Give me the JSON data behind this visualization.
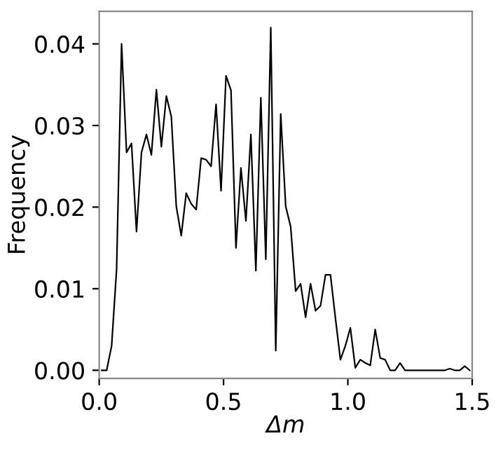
{
  "chart_data": {
    "type": "line",
    "xlabel": "Δm",
    "ylabel": "Frequency",
    "x": [
      0.01,
      0.03,
      0.05,
      0.07,
      0.09,
      0.11,
      0.13,
      0.15,
      0.17,
      0.19,
      0.21,
      0.23,
      0.25,
      0.27,
      0.29,
      0.31,
      0.33,
      0.35,
      0.37,
      0.39,
      0.41,
      0.43,
      0.45,
      0.47,
      0.49,
      0.51,
      0.53,
      0.55,
      0.57,
      0.59,
      0.61,
      0.63,
      0.65,
      0.67,
      0.69,
      0.71,
      0.73,
      0.75,
      0.77,
      0.79,
      0.81,
      0.83,
      0.85,
      0.87,
      0.89,
      0.91,
      0.93,
      0.95,
      0.97,
      0.99,
      1.01,
      1.03,
      1.05,
      1.07,
      1.09,
      1.11,
      1.13,
      1.15,
      1.17,
      1.19,
      1.21,
      1.23,
      1.25,
      1.27,
      1.29,
      1.31,
      1.33,
      1.35,
      1.37,
      1.39,
      1.41,
      1.43,
      1.45,
      1.47,
      1.49
    ],
    "series": [
      {
        "color": "#000000",
        "values": [
          0,
          0,
          0.003,
          0.0124,
          0.04,
          0.0267,
          0.0278,
          0.017,
          0.0267,
          0.0289,
          0.0264,
          0.0344,
          0.0274,
          0.0336,
          0.0311,
          0.0201,
          0.0165,
          0.0217,
          0.0204,
          0.0197,
          0.026,
          0.0258,
          0.025,
          0.0326,
          0.022,
          0.0361,
          0.0343,
          0.015,
          0.0248,
          0.0183,
          0.0289,
          0.0122,
          0.0334,
          0.0136,
          0.042,
          0.0024,
          0.0314,
          0.0201,
          0.0176,
          0.0097,
          0.0106,
          0.0065,
          0.0106,
          0.0073,
          0.0079,
          0.0117,
          0.0117,
          0.0064,
          0.0013,
          0.003,
          0.0052,
          0.0003,
          0.0013,
          0.0009,
          0.0006,
          0.005,
          0.0015,
          0.0013,
          0,
          0,
          0.0009,
          0,
          0,
          0,
          0,
          0,
          0,
          0,
          0,
          0,
          0.0002,
          0,
          0,
          0.0005,
          0
        ]
      }
    ],
    "xlim": [
      0,
      1.5
    ],
    "ylim": [
      -0.001,
      0.044
    ],
    "xticks": [
      {
        "value": 0,
        "label": "0.0"
      },
      {
        "value": 0.5,
        "label": "0.5"
      },
      {
        "value": 1.0,
        "label": "1.0"
      },
      {
        "value": 1.5,
        "label": "1.5"
      }
    ],
    "yticks": [
      {
        "value": 0,
        "label": "0.00"
      },
      {
        "value": 0.01,
        "label": "0.01"
      },
      {
        "value": 0.02,
        "label": "0.02"
      },
      {
        "value": 0.03,
        "label": "0.03"
      },
      {
        "value": 0.04,
        "label": "0.04"
      }
    ],
    "grid": false,
    "legend": false,
    "marker": "none",
    "line_style": "solid"
  }
}
